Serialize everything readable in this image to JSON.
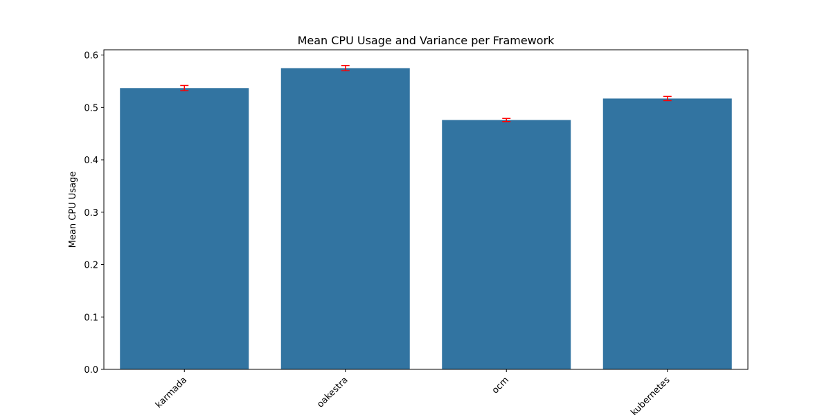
{
  "chart_data": {
    "type": "bar",
    "title": "Mean CPU Usage and Variance per Framework",
    "xlabel": "",
    "ylabel": "Mean CPU Usage",
    "categories": [
      "karmada",
      "oakestra",
      "ocm",
      "kubernetes"
    ],
    "values": [
      0.537,
      0.575,
      0.476,
      0.517
    ],
    "error": [
      0.005,
      0.005,
      0.003,
      0.004
    ],
    "ylim": [
      0,
      0.61
    ],
    "yticks": [
      0.0,
      0.1,
      0.2,
      0.3,
      0.4,
      0.5,
      0.6
    ],
    "ytick_labels": [
      "0.0",
      "0.1",
      "0.2",
      "0.3",
      "0.4",
      "0.5",
      "0.6"
    ],
    "grid": false,
    "legend": "none",
    "bar_color": "#3274a1",
    "error_color": "#ff0000"
  }
}
